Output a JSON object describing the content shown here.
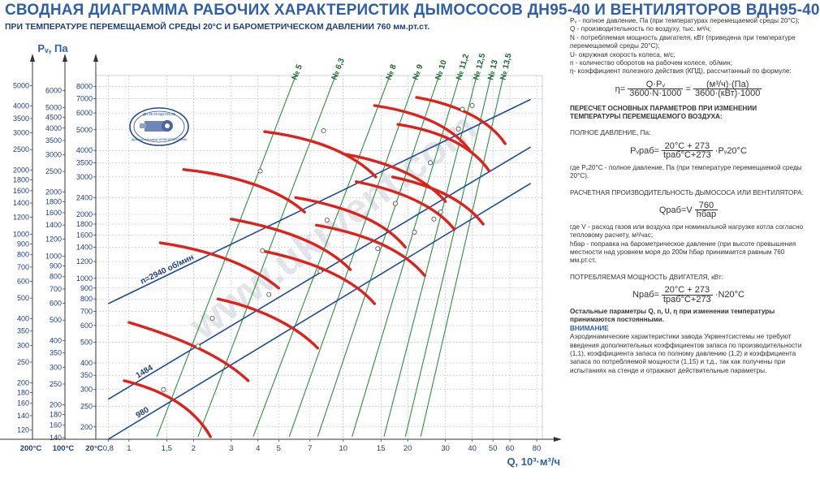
{
  "title": "СВОДНАЯ  ДИАГРАММА РАБОЧИХ ХАРАКТЕРИСТИК ДЫМОСОСОВ ДН95-40  И ВЕНТИЛЯТОРОВ ВДН95-40",
  "subtitle": "ПРИ ТЕМПЕРАТУРЕ ПЕРЕМЕЩАЕМОЙ СРЕДЫ 20°С И БАРОМЕТРИЧЕСКОМ  ДАВЛЕНИИ 760 мм.рт.ст.",
  "watermark": "www.ukrvent.com",
  "logo": {
    "top": "ДН-95-40  ВДН-95-40",
    "bottom": "Дымососный завод УКРВЕНТСИСТЕМЫ"
  },
  "colors": {
    "title": "#2f5fa8",
    "rpm_lines": "#1f4a9a",
    "size_lines": "#2a8f3c",
    "curves": "#e0201b",
    "grid": "#aab4c8"
  },
  "side": {
    "defs": [
      "Pᵥ - полное давление, Па (при температурах перемещаемой среды 20°С);",
      "Q - производительность по воздуху, тыс. м³/ч;",
      "N - потребляемая мощность двигателя, кВт (приведена при температуре перемещаемой среды 20°С);",
      "U- окружная скорость колеса, м/с;",
      "n - количество оборотов на рабочем колесе, об/мин;",
      "η- коэффициент полезного действия (КПД), рассчитанный по формуле:"
    ],
    "eta_formula": {
      "lhs": "η=",
      "num1": "Q·Pᵥ",
      "den1": "3600·N·1000",
      "eq": "=",
      "num2": "(м³/ч)·(Па)",
      "den2": "3600·(кВт)·1000"
    },
    "recalc_head": "ПЕРЕСЧЕТ ОСНОВНЫХ ПАРАМЕТРОВ ПРИ ИЗМЕНЕНИИ ТЕМПЕРАТУРЫ ПЕРЕМЕЩАЕМОГО ВОЗДУХА:",
    "pressure_caption": "ПОЛНОЕ ДАВЛЕНИЕ, Па:",
    "pressure_formula": {
      "lhs": "Pᵥраб=",
      "num": "20°С + 273",
      "den": "tраб°С+273",
      "rhs": "·Pᵥ20°С"
    },
    "pressure_note": "где Pᵥ20°С - полное давление, Па (при температуре перемещаемой среды 20°С).",
    "flow_caption": "РАСЧЕТНАЯ ПРОИЗВОДИТЕЛЬНОСТЬ ДЫМОСОСА ИЛИ ВЕНТИЛЯТОРА:",
    "flow_formula": {
      "lhs": "Qраб=V",
      "num": "760",
      "den": "hбар"
    },
    "flow_note": "где V - расход газов или воздуха при номинальной нагрузке котла согласно тепловому расчету, м³/час;",
    "flow_note2": "hбар - поправка на барометрическое давление (при высоте превышения местности над уровнем моря до 200м hбар принимается равным 760 мм.рт.ст.",
    "power_caption": "ПОТРЕБЛЯЕМАЯ МОЩНОСТЬ ДВИГАТЕЛЯ, кВт:",
    "power_formula": {
      "lhs": "Nраб=",
      "num": "20°С + 273",
      "den": "tраб°С+273",
      "rhs": "·N20°С"
    },
    "constant_note": "Остальные параметры Q, n, U, η при изменении температуры принимаются постоянными.",
    "warn_head": "ВНИМАНИЕ",
    "warn_text": "Аэродинамические характеристики завода Укрвентсистемы не требуют введения дополнительных коэффициентов запаса по производительности (1,1), коэффициента запаса по полному давлению (1,2) и коэффициента запаса по потребляемой мощности (1,15) и т.д., так как получены при испытаниях на стенде и отражают действительные параметры."
  },
  "chart_data": {
    "type": "line",
    "x_scale": "log",
    "y_scale": "log",
    "xlabel": "Q, 10³·м³/ч",
    "ylabel": "Pᵥ, Па",
    "x_ticks": [
      "0,8",
      "1",
      "1,5",
      "2",
      "3",
      "4",
      "5",
      "7",
      "10",
      "15",
      "20",
      "30",
      "40",
      "50",
      "60",
      "80"
    ],
    "xlim": [
      0.7,
      85
    ],
    "y_columns": [
      {
        "label": "200°С",
        "ticks": [
          "5000",
          "4000",
          "3500",
          "3000",
          "2500",
          "2000",
          "1800",
          "1600",
          "1400",
          "1200",
          "1000",
          "900",
          "800",
          "700",
          "600",
          "500",
          "400",
          "350",
          "300",
          "250",
          "200",
          "180",
          "160",
          "140",
          "120"
        ]
      },
      {
        "label": "100°С",
        "ticks": [
          "6000",
          "5000",
          "4500",
          "4000",
          "3500",
          "3000",
          "2500",
          "2000",
          "1800",
          "1600",
          "1400",
          "1200",
          "1000",
          "900",
          "800",
          "700",
          "600",
          "500",
          "400",
          "350",
          "300",
          "250",
          "200",
          "180",
          "160",
          "140",
          "120"
        ]
      },
      {
        "label": "20°С",
        "ticks": [
          "8000",
          "7000",
          "6000",
          "5000",
          "4000",
          "3500",
          "3000",
          "2400",
          "2000",
          "1800",
          "1600",
          "1400",
          "1200",
          "1000",
          "900",
          "800",
          "700",
          "600",
          "500",
          "400",
          "350",
          "300",
          "250",
          "200"
        ]
      }
    ],
    "ylim": [
      175,
      9000
    ],
    "grid": true,
    "rpm_lines": [
      {
        "name": "n=2940 об/мин",
        "points": [
          [
            0.8,
            760
          ],
          [
            75,
            6950
          ]
        ]
      },
      {
        "name": "1484",
        "points": [
          [
            0.8,
            270
          ],
          [
            75,
            4150
          ]
        ]
      },
      {
        "name": "980",
        "points": [
          [
            0.8,
            175
          ],
          [
            75,
            2800
          ]
        ]
      }
    ],
    "sizes": [
      "№ 5",
      "№ 6,3",
      "№ 8",
      "№ 9",
      "№ 10",
      "№ 11,2",
      "№ 12,5",
      "№ 13",
      "№ 13,5"
    ],
    "size_lines": [
      {
        "name": "№ 5",
        "points": [
          [
            1.35,
            180
          ],
          [
            6.0,
            9000
          ]
        ]
      },
      {
        "name": "№ 6,3",
        "points": [
          [
            2.1,
            180
          ],
          [
            9.2,
            9000
          ]
        ]
      },
      {
        "name": "№ 8",
        "points": [
          [
            3.8,
            180
          ],
          [
            16.5,
            9000
          ]
        ]
      },
      {
        "name": "№ 9",
        "points": [
          [
            5.6,
            180
          ],
          [
            22,
            9000
          ]
        ]
      },
      {
        "name": "№ 10",
        "points": [
          [
            7.6,
            180
          ],
          [
            28,
            9000
          ]
        ]
      },
      {
        "name": "№ 11,2",
        "points": [
          [
            11,
            180
          ],
          [
            35,
            9000
          ]
        ]
      },
      {
        "name": "№ 12,5",
        "points": [
          [
            15.5,
            180
          ],
          [
            42,
            9000
          ]
        ]
      },
      {
        "name": "№ 13",
        "points": [
          [
            19.5,
            180
          ],
          [
            49,
            9000
          ]
        ]
      },
      {
        "name": "№ 13,5",
        "points": [
          [
            23,
            180
          ],
          [
            56,
            9000
          ]
        ]
      }
    ],
    "curves": [
      {
        "points": [
          [
            0.95,
            330
          ],
          [
            1.4,
            300
          ],
          [
            2.0,
            250
          ],
          [
            2.4,
            180
          ]
        ]
      },
      {
        "points": [
          [
            1.0,
            620
          ],
          [
            1.8,
            520
          ],
          [
            2.8,
            420
          ],
          [
            3.6,
            330
          ]
        ]
      },
      {
        "points": [
          [
            1.4,
            1470
          ],
          [
            2.6,
            1340
          ],
          [
            3.9,
            1110
          ],
          [
            5.0,
            900
          ]
        ]
      },
      {
        "points": [
          [
            1.8,
            3250
          ],
          [
            3.3,
            3050
          ],
          [
            5.2,
            2550
          ],
          [
            6.6,
            2050
          ]
        ]
      },
      {
        "points": [
          [
            2.6,
            800
          ],
          [
            4.0,
            730
          ],
          [
            6.0,
            600
          ],
          [
            7.6,
            470
          ]
        ]
      },
      {
        "points": [
          [
            3.0,
            1900
          ],
          [
            5.8,
            1680
          ],
          [
            8.5,
            1400
          ],
          [
            10.8,
            1100
          ]
        ]
      },
      {
        "points": [
          [
            4.3,
            4900
          ],
          [
            7.8,
            4550
          ],
          [
            11.5,
            3750
          ],
          [
            14.2,
            3000
          ]
        ]
      },
      {
        "points": [
          [
            4.3,
            1340
          ],
          [
            7.8,
            1180
          ],
          [
            11.5,
            960
          ],
          [
            14.0,
            760
          ]
        ]
      },
      {
        "points": [
          [
            6.0,
            2400
          ],
          [
            11.0,
            2150
          ],
          [
            16.0,
            1800
          ],
          [
            19.5,
            1400
          ]
        ]
      },
      {
        "points": [
          [
            7.5,
            1780
          ],
          [
            13.5,
            1600
          ],
          [
            19.5,
            1330
          ],
          [
            24.0,
            1030
          ]
        ]
      },
      {
        "points": [
          [
            10.0,
            3850
          ],
          [
            17.5,
            3500
          ],
          [
            25.0,
            2850
          ],
          [
            30.0,
            2300
          ]
        ]
      },
      {
        "points": [
          [
            11.5,
            2850
          ],
          [
            20.0,
            2550
          ],
          [
            28.0,
            2100
          ],
          [
            33.0,
            1700
          ]
        ]
      },
      {
        "points": [
          [
            14.0,
            6500
          ],
          [
            24.0,
            6000
          ],
          [
            33.0,
            5000
          ],
          [
            39.0,
            4000
          ]
        ]
      },
      {
        "points": [
          [
            17.0,
            3000
          ],
          [
            28.0,
            2700
          ],
          [
            38.0,
            2250
          ],
          [
            45.0,
            1800
          ]
        ]
      },
      {
        "points": [
          [
            18.0,
            5300
          ],
          [
            30.0,
            4900
          ],
          [
            41.0,
            4050
          ],
          [
            48.0,
            3200
          ]
        ]
      },
      {
        "points": [
          [
            22.0,
            7100
          ],
          [
            36.0,
            6500
          ],
          [
            49.0,
            5400
          ],
          [
            57.0,
            4300
          ]
        ]
      }
    ],
    "op_points": [
      [
        1.45,
        300
      ],
      [
        2.1,
        480
      ],
      [
        2.45,
        650
      ],
      [
        4.2,
        1350
      ],
      [
        4.5,
        840
      ],
      [
        4.1,
        3200
      ],
      [
        7.8,
        1080
      ],
      [
        8.4,
        1880
      ],
      [
        8.1,
        4950
      ],
      [
        14.5,
        1380
      ],
      [
        17.5,
        2250
      ],
      [
        21.5,
        1650
      ],
      [
        25.5,
        3500
      ],
      [
        26.5,
        1900
      ],
      [
        28.5,
        2050
      ],
      [
        34.5,
        5050
      ],
      [
        36.0,
        6250
      ],
      [
        40.0,
        6500
      ]
    ]
  }
}
